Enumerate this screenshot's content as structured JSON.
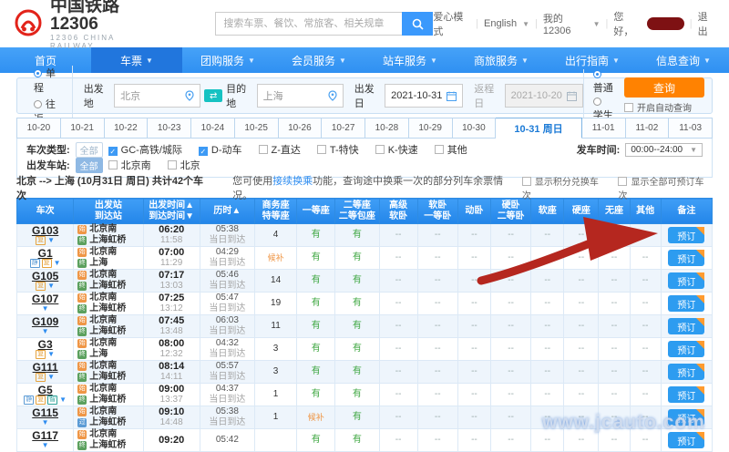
{
  "header": {
    "logo_title": "中国铁路12306",
    "logo_subtitle": "12306 CHINA RAILWAY",
    "search_placeholder": "搜索车票、餐饮、常旅客、相关规章",
    "care_mode": "爱心模式",
    "english": "English",
    "my12306": "我的12306",
    "greeting": "您好，",
    "logout": "退出"
  },
  "nav": {
    "items": [
      {
        "label": "首页",
        "active": false,
        "dropdown": false
      },
      {
        "label": "车票",
        "active": true,
        "dropdown": true
      },
      {
        "label": "团购服务",
        "active": false,
        "dropdown": true
      },
      {
        "label": "会员服务",
        "active": false,
        "dropdown": true
      },
      {
        "label": "站车服务",
        "active": false,
        "dropdown": true
      },
      {
        "label": "商旅服务",
        "active": false,
        "dropdown": true
      },
      {
        "label": "出行指南",
        "active": false,
        "dropdown": true
      },
      {
        "label": "信息查询",
        "active": false,
        "dropdown": true
      }
    ]
  },
  "search_form": {
    "trip_one_way": "单程",
    "trip_round": "往返",
    "selected_trip": "单程",
    "from_label": "出发地",
    "from_value": "北京",
    "to_label": "目的地",
    "to_value": "上海",
    "depart_label": "出发日",
    "depart_value": "2021-10-31",
    "return_label": "返程日",
    "return_value": "2021-10-20",
    "ptype_normal": "普通",
    "ptype_student": "学生",
    "selected_ptype": "普通",
    "submit_label": "查询",
    "auto_query_label": "开启自动查询"
  },
  "date_tabs": {
    "tabs": [
      "10-20",
      "10-21",
      "10-22",
      "10-23",
      "10-24",
      "10-25",
      "10-26",
      "10-27",
      "10-28",
      "10-29",
      "10-30",
      "10-31 周日",
      "11-01",
      "11-02",
      "11-03"
    ],
    "active": "10-31 周日"
  },
  "filters": {
    "type_label": "车次类型:",
    "all_label": "全部",
    "train_types": [
      {
        "label": "GC-高铁/城际",
        "checked": true
      },
      {
        "label": "D-动车",
        "checked": true
      },
      {
        "label": "Z-直达",
        "checked": false
      },
      {
        "label": "T-特快",
        "checked": false
      },
      {
        "label": "K-快速",
        "checked": false
      },
      {
        "label": "其他",
        "checked": false
      }
    ],
    "depart_time_label": "发车时间:",
    "depart_time_value": "00:00--24:00",
    "station_label": "出发车站:",
    "stations": [
      {
        "label": "北京南",
        "checked": false
      },
      {
        "label": "北京",
        "checked": false
      }
    ]
  },
  "summary": {
    "route": "北京 --> 上海 (10月31日 周日) 共计42个车次",
    "tip_prefix": "您可使用",
    "tip_link": "接续换乘",
    "tip_suffix": "功能，查询途中换乘一次的部分列车余票情况。",
    "checkbox_points": "显示积分兑换车次",
    "checkbox_all": "显示全部可预订车次"
  },
  "table": {
    "headers": [
      "车次",
      "出发站\n到达站",
      "出发时间▲\n到达时间▼",
      "历时▲",
      "商务座\n特等座",
      "一等座",
      "二等座\n二等包座",
      "高级\n软卧",
      "软卧\n一等卧",
      "动卧",
      "硬卧\n二等卧",
      "软座",
      "硬座",
      "无座",
      "其他",
      "备注"
    ],
    "book_label": "预订",
    "rows": [
      {
        "train": "G103",
        "badges": [
          "复"
        ],
        "from_icon": "始",
        "from": "北京南",
        "to_icon": "终",
        "to": "上海虹桥",
        "dep": "06:20",
        "arr": "11:58",
        "dur": "05:38",
        "day": "当日到达",
        "seats": [
          "4",
          "有",
          "有",
          "--",
          "--",
          "--",
          "--",
          "--",
          "--",
          "--",
          "--"
        ]
      },
      {
        "train": "G1",
        "badges": [
          "静",
          "复"
        ],
        "from_icon": "始",
        "from": "北京南",
        "to_icon": "终",
        "to": "上海",
        "dep": "07:00",
        "arr": "11:29",
        "dur": "04:29",
        "day": "当日到达",
        "seats": [
          "候补",
          "有",
          "有",
          "--",
          "--",
          "--",
          "--",
          "--",
          "--",
          "--",
          "--"
        ]
      },
      {
        "train": "G105",
        "badges": [
          "复"
        ],
        "from_icon": "始",
        "from": "北京南",
        "to_icon": "终",
        "to": "上海虹桥",
        "dep": "07:17",
        "arr": "13:03",
        "dur": "05:46",
        "day": "当日到达",
        "seats": [
          "14",
          "有",
          "有",
          "--",
          "--",
          "--",
          "--",
          "--",
          "--",
          "--",
          "--"
        ]
      },
      {
        "train": "G107",
        "badges": [],
        "from_icon": "始",
        "from": "北京南",
        "to_icon": "终",
        "to": "上海虹桥",
        "dep": "07:25",
        "arr": "13:12",
        "dur": "05:47",
        "day": "当日到达",
        "seats": [
          "19",
          "有",
          "有",
          "--",
          "--",
          "--",
          "--",
          "--",
          "--",
          "--",
          "--"
        ]
      },
      {
        "train": "G109",
        "badges": [],
        "from_icon": "始",
        "from": "北京南",
        "to_icon": "终",
        "to": "上海虹桥",
        "dep": "07:45",
        "arr": "13:48",
        "dur": "06:03",
        "day": "当日到达",
        "seats": [
          "11",
          "有",
          "有",
          "--",
          "--",
          "--",
          "--",
          "--",
          "--",
          "--",
          "--"
        ]
      },
      {
        "train": "G3",
        "badges": [
          "复"
        ],
        "from_icon": "始",
        "from": "北京南",
        "to_icon": "终",
        "to": "上海",
        "dep": "08:00",
        "arr": "12:32",
        "dur": "04:32",
        "day": "当日到达",
        "seats": [
          "3",
          "有",
          "有",
          "--",
          "--",
          "--",
          "--",
          "--",
          "--",
          "--",
          "--"
        ]
      },
      {
        "train": "G111",
        "badges": [
          "复"
        ],
        "from_icon": "始",
        "from": "北京南",
        "to_icon": "终",
        "to": "上海虹桥",
        "dep": "08:14",
        "arr": "14:11",
        "dur": "05:57",
        "day": "当日到达",
        "seats": [
          "3",
          "有",
          "有",
          "--",
          "--",
          "--",
          "--",
          "--",
          "--",
          "--",
          "--"
        ]
      },
      {
        "train": "G5",
        "badges": [
          "静",
          "复",
          "智"
        ],
        "from_icon": "始",
        "from": "北京南",
        "to_icon": "终",
        "to": "上海虹桥",
        "dep": "09:00",
        "arr": "13:37",
        "dur": "04:37",
        "day": "当日到达",
        "seats": [
          "1",
          "有",
          "有",
          "--",
          "--",
          "--",
          "--",
          "--",
          "--",
          "--",
          "--"
        ]
      },
      {
        "train": "G115",
        "badges": [],
        "from_icon": "始",
        "from": "北京南",
        "to_icon": "过",
        "to": "上海虹桥",
        "dep": "09:10",
        "arr": "14:48",
        "dur": "05:38",
        "day": "当日到达",
        "seats": [
          "1",
          "候补",
          "有",
          "--",
          "--",
          "--",
          "--",
          "--",
          "--",
          "--",
          "--"
        ]
      },
      {
        "train": "G117",
        "badges": [],
        "from_icon": "始",
        "from": "北京南",
        "to_icon": "终",
        "to": "上海虹桥",
        "dep": "09:20",
        "arr": "",
        "dur": "05:42",
        "day": "",
        "seats": [
          "",
          "有",
          "有",
          "--",
          "--",
          "--",
          "--",
          "--",
          "--",
          "--",
          "--"
        ]
      }
    ]
  },
  "watermark": "www.jcauto.com"
}
